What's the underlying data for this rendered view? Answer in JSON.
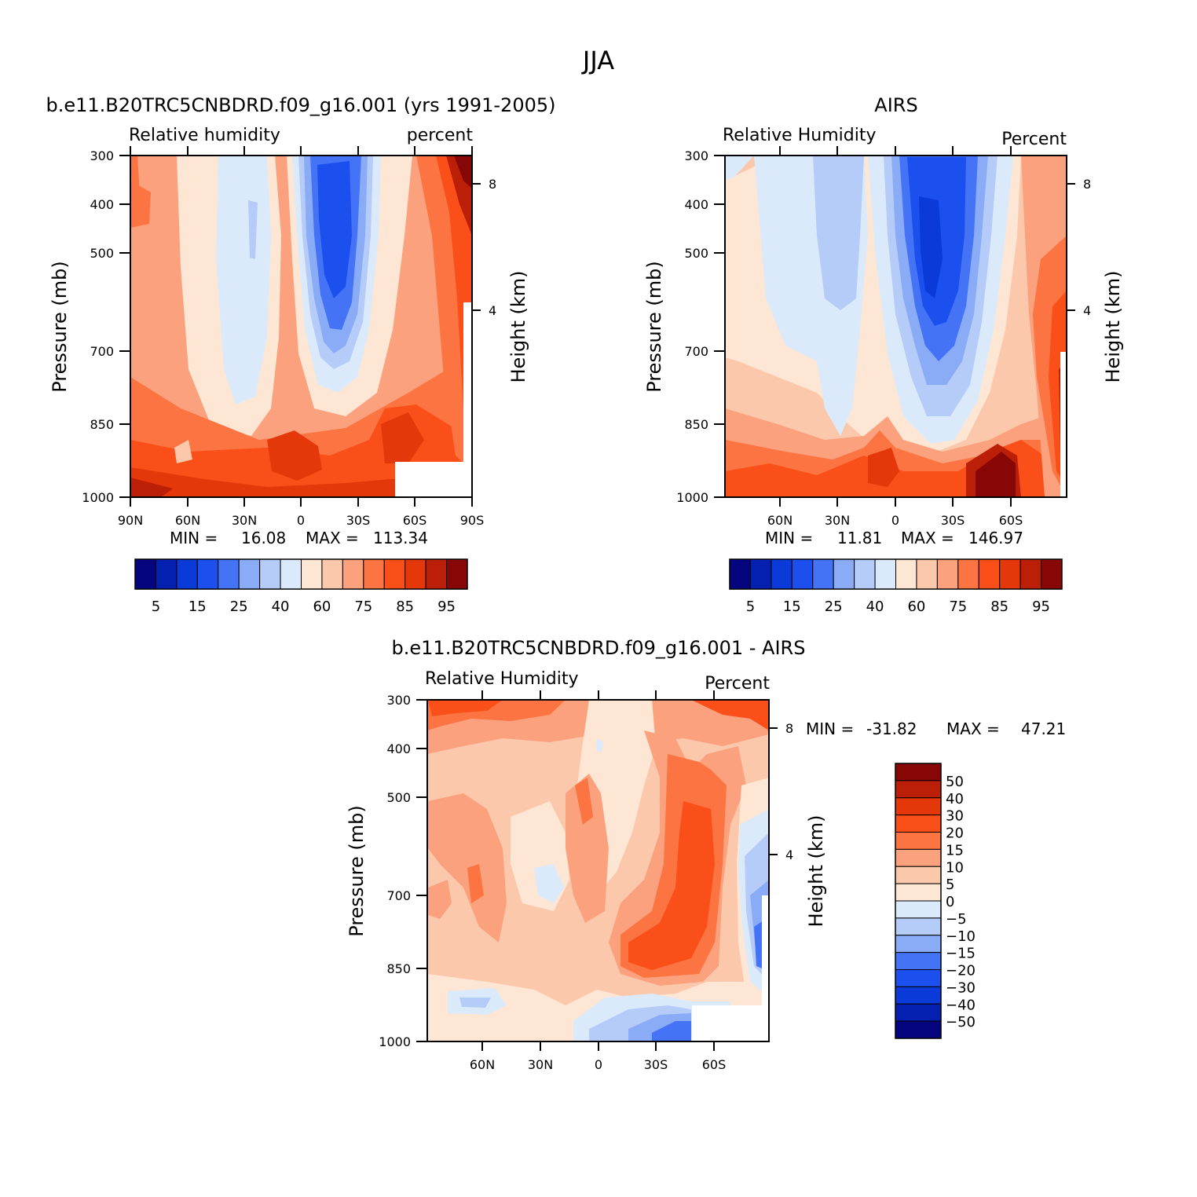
{
  "page_title": "JJA",
  "colors": {
    "blue_scale": [
      "#04057f",
      "#0420b0",
      "#0a3ad8",
      "#1b50ef",
      "#4474f5",
      "#8aabf5",
      "#b5cbf8",
      "#dbeafb"
    ],
    "red_scale": [
      "#fde6d4",
      "#fcc8ac",
      "#fba17e",
      "#fb7441",
      "#fa4f18",
      "#e4380a",
      "#bc1f08",
      "#870606"
    ]
  },
  "chart_data": [
    {
      "type": "contour",
      "title": "b.e11.B20TRC5CNBDRD.f09_g16.001 (yrs 1991-2005)",
      "subtitle_left": "Relative humidity",
      "subtitle_right": "percent",
      "ylabel": "Pressure (mb)",
      "ylabel_right": "Height (km)",
      "x_ticks": [
        "90N",
        "60N",
        "30N",
        "0",
        "30S",
        "60S",
        "90S"
      ],
      "y_ticks": [
        "300",
        "400",
        "500",
        "700",
        "850",
        "1000"
      ],
      "y_right_ticks": [
        "8",
        "4"
      ],
      "min_label": "MIN =",
      "min_value": "16.08",
      "max_label": "MAX =",
      "max_value": "113.34",
      "colorbar_labels": [
        "5",
        "15",
        "25",
        "40",
        "60",
        "75",
        "85",
        "95"
      ]
    },
    {
      "type": "contour",
      "title": "AIRS",
      "subtitle_left": "Relative Humidity",
      "subtitle_right": "Percent",
      "ylabel": "Pressure (mb)",
      "ylabel_right": "Height (km)",
      "x_ticks": [
        "60N",
        "30N",
        "0",
        "30S",
        "60S"
      ],
      "y_ticks": [
        "300",
        "400",
        "500",
        "700",
        "850",
        "1000"
      ],
      "y_right_ticks": [
        "8",
        "4"
      ],
      "min_label": "MIN =",
      "min_value": "11.81",
      "max_label": "MAX =",
      "max_value": "146.97",
      "colorbar_labels": [
        "5",
        "15",
        "25",
        "40",
        "60",
        "75",
        "85",
        "95"
      ]
    },
    {
      "type": "contour",
      "title": "b.e11.B20TRC5CNBDRD.f09_g16.001 - AIRS",
      "subtitle_left": "Relative Humidity",
      "subtitle_right": "Percent",
      "ylabel": "Pressure (mb)",
      "ylabel_right": "Height (km)",
      "x_ticks": [
        "60N",
        "30N",
        "0",
        "30S",
        "60S"
      ],
      "y_ticks": [
        "300",
        "400",
        "500",
        "700",
        "850",
        "1000"
      ],
      "y_right_ticks": [
        "8",
        "4"
      ],
      "min_label": "MIN =",
      "min_value": "-31.82",
      "max_label": "MAX =",
      "max_value": "47.21",
      "colorbar_labels": [
        "50",
        "40",
        "30",
        "20",
        "15",
        "10",
        "5",
        "0",
        "-5",
        "-10",
        "-15",
        "-20",
        "-30",
        "-40",
        "-50"
      ]
    }
  ]
}
